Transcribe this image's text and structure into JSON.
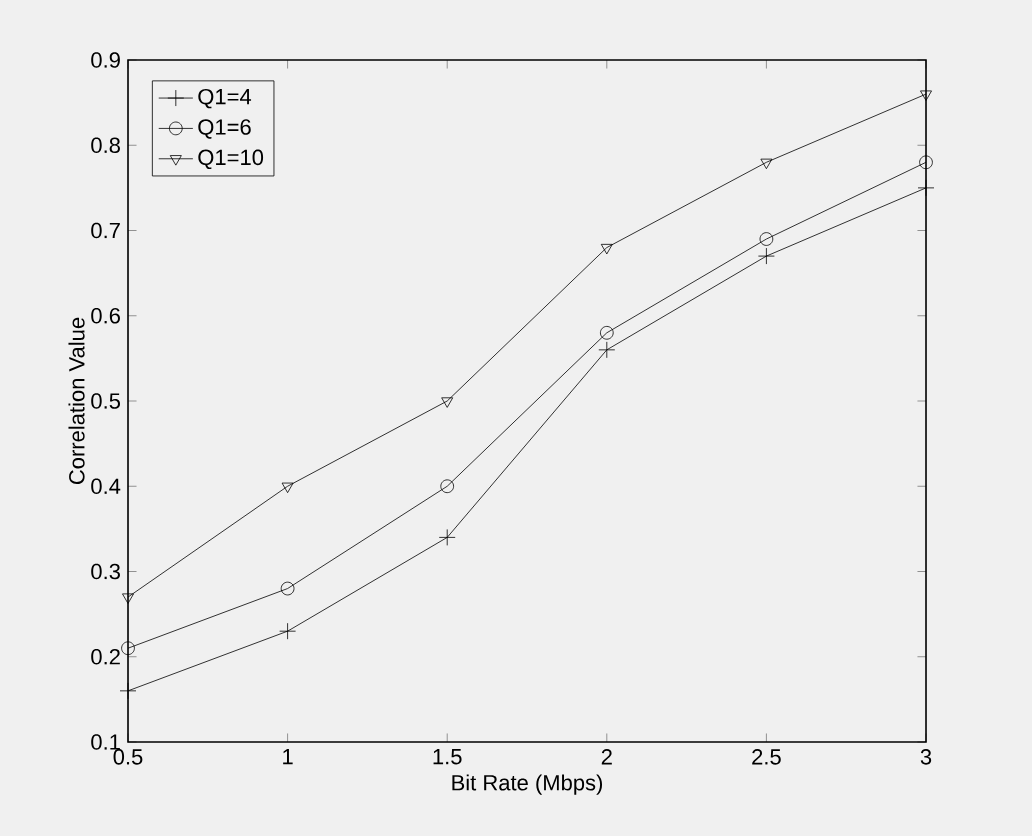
{
  "chart_data": {
    "type": "line",
    "xlabel": "Bit Rate (Mbps)",
    "ylabel": "Correlation Value",
    "x": [
      0.5,
      1,
      1.5,
      2,
      2.5,
      3
    ],
    "series": [
      {
        "name": "Q1=4",
        "color": "#000000",
        "marker": "cross",
        "values": [
          0.16,
          0.23,
          0.34,
          0.56,
          0.67,
          0.75
        ]
      },
      {
        "name": "Q1=6",
        "color": "#000000",
        "marker": "circle",
        "values": [
          0.21,
          0.28,
          0.4,
          0.58,
          0.69,
          0.78
        ]
      },
      {
        "name": "Q1=10",
        "color": "#000000",
        "marker": "triangle",
        "values": [
          0.27,
          0.4,
          0.5,
          0.68,
          0.78,
          0.86
        ]
      }
    ],
    "xlim": [
      0.5,
      3
    ],
    "xticks": [
      0.5,
      1,
      1.5,
      2,
      2.5,
      3
    ],
    "ylim": [
      0.1,
      0.9
    ],
    "yticks": [
      0.1,
      0.2,
      0.3,
      0.4,
      0.5,
      0.6,
      0.7,
      0.8,
      0.9
    ],
    "grid": false,
    "legend": "top left",
    "line_style": "solid"
  }
}
